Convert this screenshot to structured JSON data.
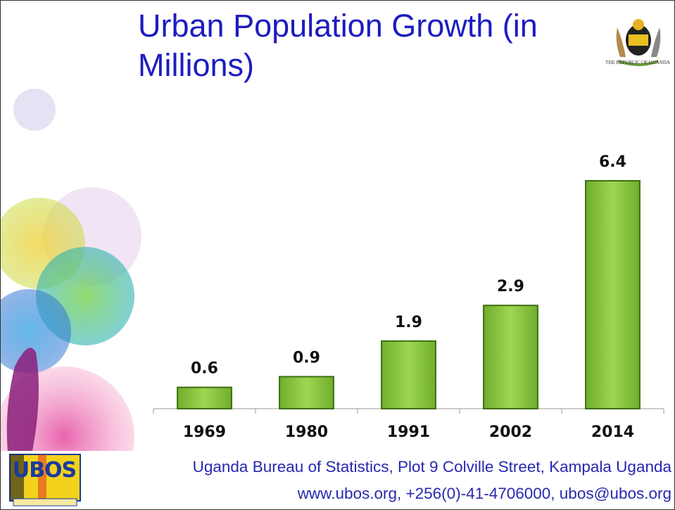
{
  "chart_data": {
    "type": "bar",
    "title": "Urban Population Growth (in Millions)",
    "categories": [
      "1969",
      "1980",
      "1991",
      "2002",
      "2014"
    ],
    "values": [
      0.6,
      0.9,
      1.9,
      2.9,
      6.4
    ],
    "color": "#8cc63f"
  },
  "emblem": {
    "caption": "THE REPUBLIC OF UGANDA"
  },
  "logo": {
    "text": "UBOS"
  },
  "footer": {
    "line1": "Uganda Bureau of Statistics, Plot 9 Colville Street, Kampala Uganda",
    "line2": "www.ubos.org, +256(0)-41-4706000, ubos@ubos.org"
  }
}
